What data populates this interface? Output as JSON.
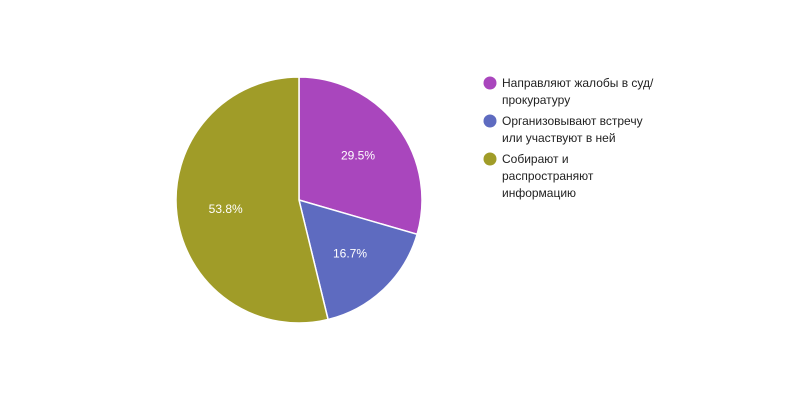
{
  "chart_data": {
    "type": "pie",
    "title": "",
    "legend_position": "right",
    "slices": [
      {
        "label": "Направляют жалобы в суд/ прокуратуру",
        "legend_lines": [
          "Направляют жалобы в суд/",
          "прокуратуру"
        ],
        "value": 29.5,
        "value_label": "29.5%",
        "color": "#a946bd"
      },
      {
        "label": "Организовывают встречу или участвуют в ней",
        "legend_lines": [
          "Организовывают встречу",
          "или участвуют в ней"
        ],
        "value": 16.7,
        "value_label": "16.7%",
        "color": "#5e6bc0"
      },
      {
        "label": "Собирают и распространяют информацию",
        "legend_lines": [
          "Собирают и",
          "распространяют",
          "информацию"
        ],
        "value": 53.8,
        "value_label": "53.8%",
        "color": "#a09c28"
      }
    ]
  }
}
